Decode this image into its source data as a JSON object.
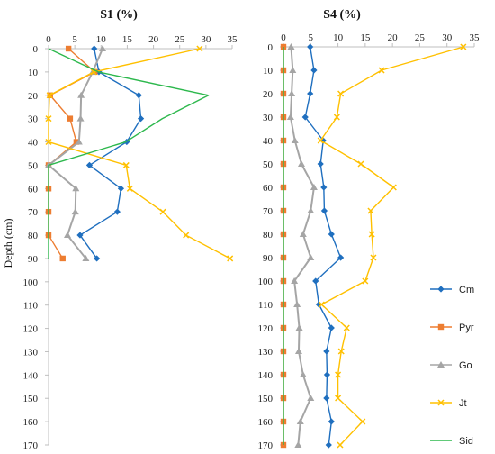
{
  "chart_data": [
    {
      "type": "line",
      "title": "S1 (%)",
      "ylabel": "Depth (cm)",
      "xlim": [
        0,
        35
      ],
      "ylim": [
        170,
        0
      ],
      "x_ticks": [
        0,
        5,
        10,
        15,
        20,
        25,
        30,
        35
      ],
      "y_ticks": [
        0,
        10,
        20,
        30,
        40,
        50,
        60,
        70,
        80,
        90,
        100,
        110,
        120,
        130,
        140,
        150,
        160,
        170
      ],
      "depth": [
        0,
        10,
        20,
        30,
        40,
        50,
        60,
        70,
        80,
        90
      ],
      "series": [
        {
          "name": "Cm",
          "color": "#1f6fbf",
          "marker": "diamond",
          "values": [
            8.7,
            9.6,
            17.2,
            17.6,
            14.9,
            7.8,
            13.8,
            13.1,
            6.0,
            9.2
          ]
        },
        {
          "name": "Pyr",
          "color": "#ed7d31",
          "marker": "square",
          "values": [
            3.8,
            8.8,
            0.3,
            4.1,
            5.3,
            0.0,
            0.0,
            0.0,
            0.0,
            2.7
          ]
        },
        {
          "name": "Go",
          "color": "#a5a5a5",
          "marker": "triangle",
          "values": [
            10.3,
            8.4,
            6.2,
            6.1,
            5.8,
            0.0,
            5.2,
            5.1,
            3.6,
            7.1
          ]
        },
        {
          "name": "Jt",
          "color": "#ffc000",
          "marker": "x",
          "values": [
            28.8,
            8.6,
            0.2,
            0.0,
            0.0,
            14.8,
            15.5,
            21.8,
            26.2,
            34.6
          ]
        },
        {
          "name": "Sid",
          "color": "#2db84d",
          "marker": "none",
          "values": [
            0.0,
            9.5,
            30.5,
            21.7,
            14.7,
            0.0,
            0.0,
            0.0,
            0.0,
            0.0
          ]
        }
      ]
    },
    {
      "type": "line",
      "title": "S4 (%)",
      "xlim": [
        0,
        35
      ],
      "ylim": [
        170,
        0
      ],
      "x_ticks": [
        0,
        5,
        10,
        15,
        20,
        25,
        30,
        35
      ],
      "y_ticks": [
        0,
        10,
        20,
        30,
        40,
        50,
        60,
        70,
        80,
        90,
        100,
        110,
        120,
        130,
        140,
        150,
        160,
        170
      ],
      "depth": [
        0,
        10,
        20,
        30,
        40,
        50,
        60,
        70,
        80,
        90,
        100,
        110,
        120,
        130,
        140,
        150,
        160,
        170
      ],
      "series": [
        {
          "name": "Cm",
          "color": "#1f6fbf",
          "marker": "diamond",
          "values": [
            4.9,
            5.6,
            4.9,
            4.0,
            7.3,
            6.8,
            7.4,
            7.5,
            8.8,
            10.5,
            5.9,
            6.5,
            8.8,
            7.9,
            8.0,
            7.9,
            8.8,
            8.3
          ]
        },
        {
          "name": "Pyr",
          "color": "#ed7d31",
          "marker": "square",
          "values": [
            0,
            0,
            0,
            0,
            0,
            0,
            0,
            0,
            0,
            0,
            0,
            0,
            0,
            0,
            0,
            0,
            0,
            0
          ]
        },
        {
          "name": "Go",
          "color": "#a5a5a5",
          "marker": "triangle",
          "values": [
            1.4,
            1.7,
            1.5,
            1.3,
            2.1,
            3.3,
            5.6,
            5.0,
            3.6,
            5.0,
            2.0,
            2.5,
            2.9,
            2.8,
            3.6,
            5.0,
            3.1,
            2.7
          ]
        },
        {
          "name": "Jt",
          "color": "#ffc000",
          "marker": "x",
          "values": [
            33.0,
            18.0,
            10.5,
            9.8,
            6.8,
            14.2,
            20.2,
            16.0,
            16.2,
            16.5,
            15.0,
            7.0,
            11.6,
            10.6,
            10.0,
            10.0,
            14.5,
            10.4
          ]
        },
        {
          "name": "Sid",
          "color": "#2db84d",
          "marker": "none",
          "values": [
            0,
            0,
            0,
            0,
            0,
            0,
            0,
            0,
            0,
            0,
            0,
            0,
            0,
            0,
            0,
            0,
            0,
            0
          ]
        }
      ]
    }
  ],
  "legend": {
    "position": "right",
    "items": [
      {
        "label": "Cm",
        "color": "#1f6fbf",
        "marker": "diamond"
      },
      {
        "label": "Pyr",
        "color": "#ed7d31",
        "marker": "square"
      },
      {
        "label": "Go",
        "color": "#a5a5a5",
        "marker": "triangle"
      },
      {
        "label": "Jt",
        "color": "#ffc000",
        "marker": "x"
      },
      {
        "label": "Sid",
        "color": "#2db84d",
        "marker": "none"
      }
    ]
  }
}
